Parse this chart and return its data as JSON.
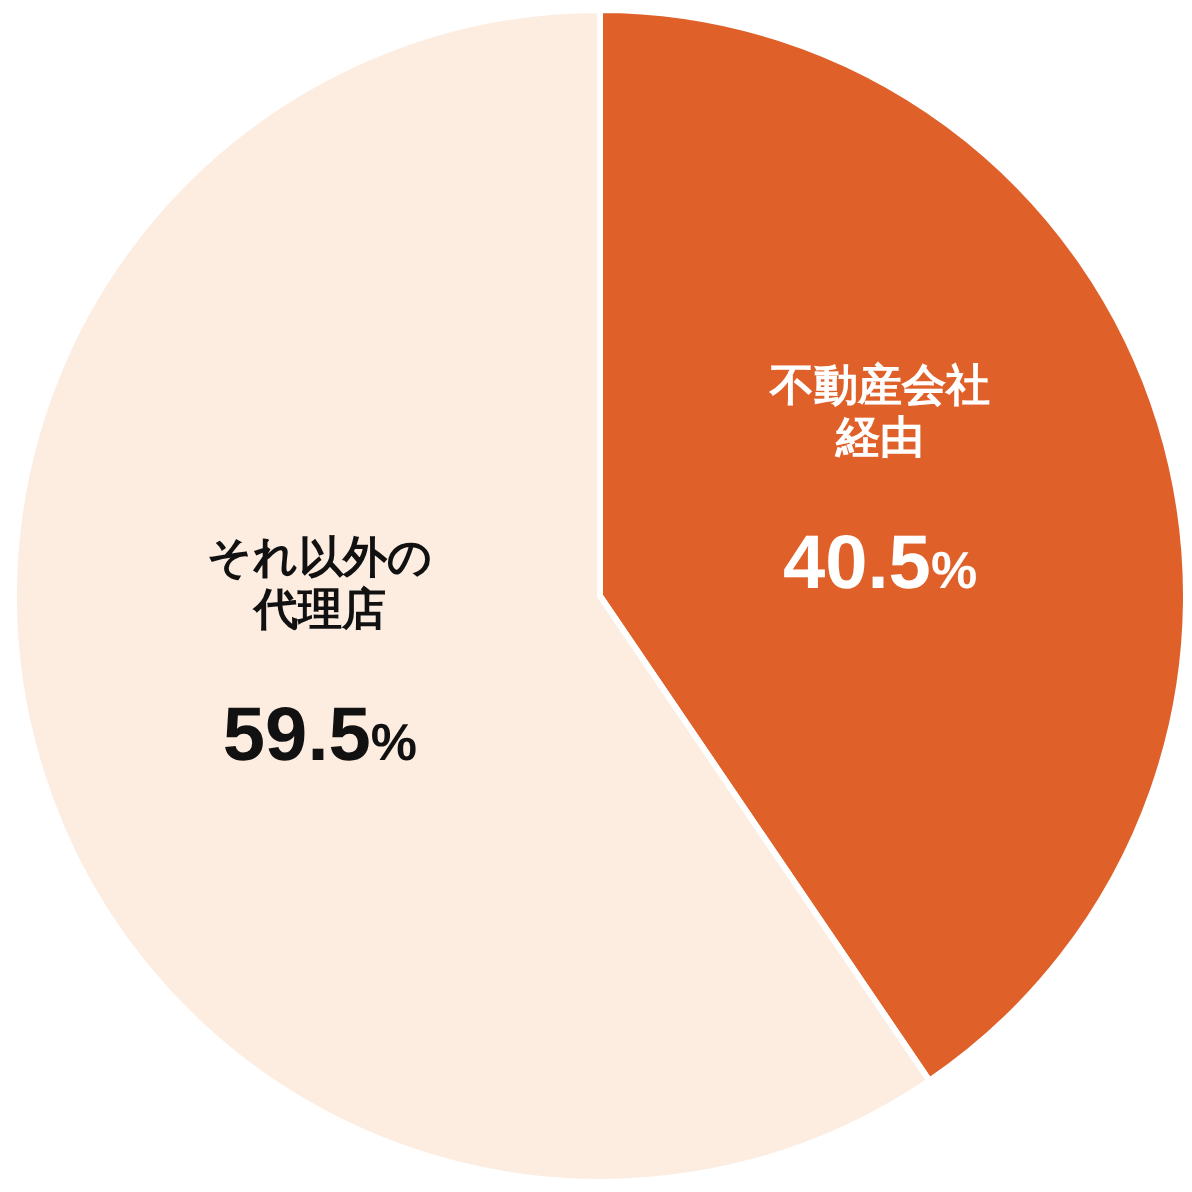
{
  "chart_data": {
    "type": "pie",
    "categories": [
      "不動産会社経由",
      "それ以外の代理店"
    ],
    "values": [
      40.5,
      59.5
    ],
    "value_labels": [
      "40.5%",
      "59.5%"
    ],
    "colors": [
      "#e0602a",
      "#fdede1"
    ]
  }
}
